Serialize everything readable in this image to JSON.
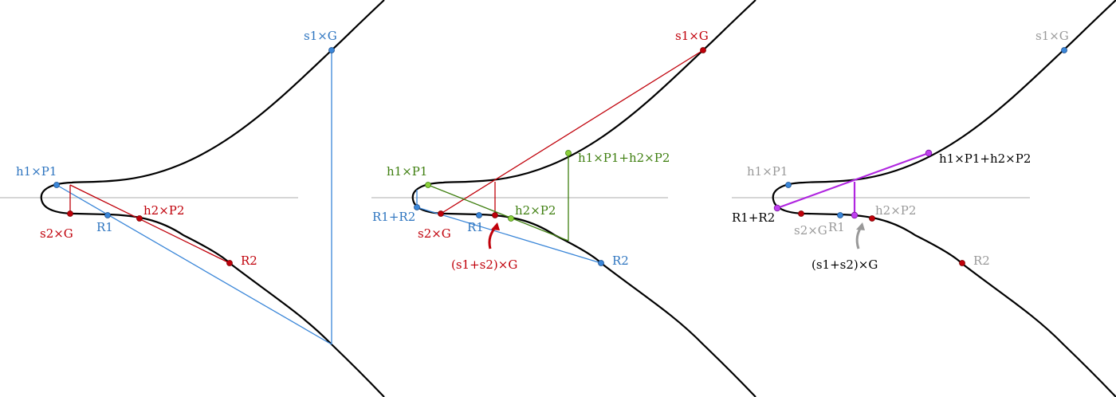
{
  "panels": [
    {
      "labels": [
        "s1×G",
        "h1×P1",
        "s2×G",
        "R1",
        "h2×P2",
        "R2"
      ]
    },
    {
      "labels": [
        "s1×G",
        "h1×P1",
        "h1×P1+h2×P2",
        "R1+R2",
        "s2×G",
        "R1",
        "h2×P2",
        "(s1+s2)×G",
        "R2"
      ]
    },
    {
      "labels": [
        "s1×G",
        "h1×P1",
        "h1×P1+h2×P2",
        "R1+R2",
        "s2×G",
        "R1",
        "h2×P2",
        "(s1+s2)×G",
        "R2"
      ]
    }
  ]
}
